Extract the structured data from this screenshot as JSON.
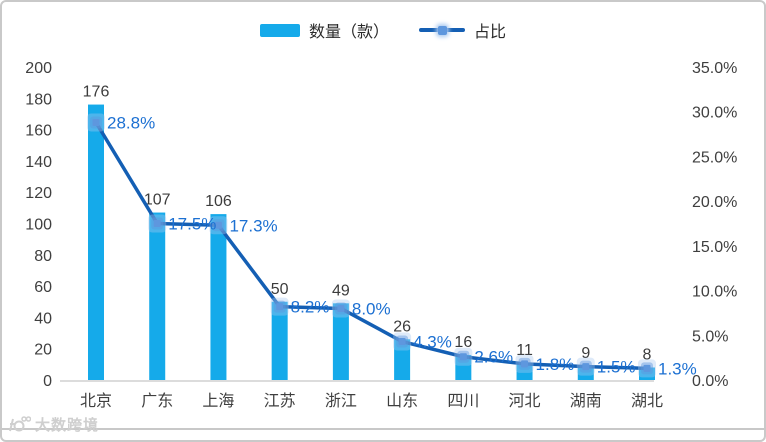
{
  "legend": {
    "bar_label": "数量（款）",
    "line_label": "占比"
  },
  "colors": {
    "bar": "#15aaea",
    "line": "#145fb4",
    "marker": "#5e97de",
    "marker_glow": "#a9c9f0",
    "pct_label": "#1c70d2",
    "value_label": "#3c3c3c",
    "tick_label": "#3f3f3f",
    "axis_line": "#dcdcdc"
  },
  "watermark": {
    "text": "大数跨境",
    "logo_icon": "brand-logo"
  },
  "chart_data": {
    "type": "bar+line",
    "categories": [
      "北京",
      "广东",
      "上海",
      "江苏",
      "浙江",
      "山东",
      "四川",
      "河北",
      "湖南",
      "湖北"
    ],
    "series": [
      {
        "name": "数量（款）",
        "type": "bar",
        "axis": "left",
        "values": [
          176,
          107,
          106,
          50,
          49,
          26,
          16,
          11,
          9,
          8
        ]
      },
      {
        "name": "占比",
        "type": "line",
        "axis": "right",
        "unit": "%",
        "values": [
          28.8,
          17.5,
          17.3,
          8.2,
          8.0,
          4.3,
          2.6,
          1.8,
          1.5,
          1.3
        ]
      }
    ],
    "value_labels": [
      "176",
      "107",
      "106",
      "50",
      "49",
      "26",
      "16",
      "11",
      "9",
      "8"
    ],
    "pct_labels": [
      "28.8%",
      "17.5%",
      "17.3%",
      "8.2%",
      "8.0%",
      "4.3%",
      "2.6%",
      "1.8%",
      "1.5%",
      "1.3%"
    ],
    "left_axis": {
      "min": 0,
      "max": 200,
      "step": 20
    },
    "right_axis": {
      "min": 0,
      "max": 35,
      "step": 5,
      "tick_suffix": "%",
      "decimals": 1
    },
    "title": "",
    "grid": false,
    "legend_position": "top-center"
  }
}
